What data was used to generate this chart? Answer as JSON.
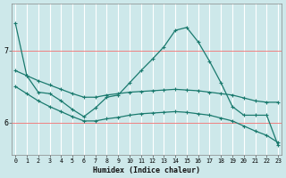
{
  "xlabel": "Humidex (Indice chaleur)",
  "bg_color": "#cde8ea",
  "grid_color_v": "#ffffff",
  "grid_color_h": "#f08080",
  "line_color": "#1a7a6e",
  "x_ticks": [
    0,
    1,
    2,
    3,
    4,
    5,
    6,
    7,
    8,
    9,
    10,
    11,
    12,
    13,
    14,
    15,
    16,
    17,
    18,
    19,
    20,
    21,
    22,
    23
  ],
  "y_ticks": [
    6,
    7
  ],
  "xlim": [
    -0.3,
    23.3
  ],
  "ylim": [
    5.55,
    7.65
  ],
  "series_peak_x": [
    0,
    1,
    2,
    3,
    4,
    5,
    6,
    7,
    8,
    9,
    10,
    11,
    12,
    13,
    14,
    15,
    16,
    17,
    18,
    19,
    20,
    21,
    22,
    23
  ],
  "series_peak_y": [
    7.38,
    6.65,
    6.42,
    6.4,
    6.3,
    6.18,
    6.08,
    6.2,
    6.35,
    6.38,
    6.55,
    6.72,
    6.88,
    7.05,
    7.28,
    7.32,
    7.12,
    6.85,
    6.55,
    6.22,
    6.1,
    6.1,
    6.1,
    5.68
  ],
  "series_upper_x": [
    0,
    1,
    2,
    3,
    4,
    5,
    6,
    7,
    8,
    9,
    10,
    11,
    12,
    13,
    14,
    15,
    16,
    17,
    18,
    19,
    20,
    21,
    22,
    23
  ],
  "series_upper_y": [
    6.72,
    6.65,
    6.58,
    6.52,
    6.46,
    6.4,
    6.35,
    6.35,
    6.38,
    6.4,
    6.42,
    6.43,
    6.44,
    6.45,
    6.46,
    6.45,
    6.44,
    6.42,
    6.4,
    6.38,
    6.34,
    6.3,
    6.28,
    6.28
  ],
  "series_lower_x": [
    0,
    1,
    2,
    3,
    4,
    5,
    6,
    7,
    8,
    9,
    10,
    11,
    12,
    13,
    14,
    15,
    16,
    17,
    18,
    19,
    20,
    21,
    22,
    23
  ],
  "series_lower_y": [
    6.5,
    6.4,
    6.3,
    6.22,
    6.15,
    6.08,
    6.02,
    6.02,
    6.05,
    6.07,
    6.1,
    6.12,
    6.13,
    6.14,
    6.15,
    6.14,
    6.12,
    6.1,
    6.06,
    6.02,
    5.95,
    5.88,
    5.82,
    5.72
  ]
}
